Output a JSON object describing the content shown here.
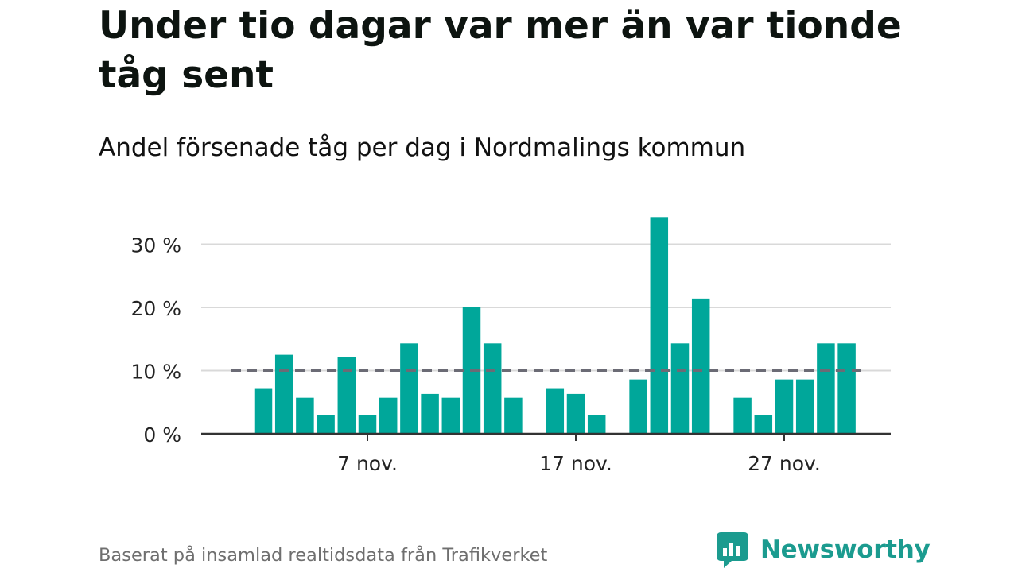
{
  "title": "Under tio dagar var mer än var tionde tåg sent",
  "subtitle": "Andel försenade tåg per dag i Nordmalings kommun",
  "source": "Baserat på insamlad realtidsdata från Trafikverket",
  "brand": "Newsworthy",
  "colors": {
    "bar": "#00a79a",
    "reference_line": "#6b6b75",
    "grid": "#d9d9d9",
    "axis": "#333333",
    "brand": "#1b9b8f"
  },
  "chart_data": {
    "type": "bar",
    "x_unit": "day of November",
    "x": [
      2,
      3,
      4,
      5,
      6,
      7,
      8,
      9,
      10,
      11,
      12,
      13,
      14,
      15,
      16,
      17,
      18,
      19,
      20,
      21,
      22,
      23,
      24,
      25,
      26,
      27,
      28,
      29,
      30
    ],
    "values": [
      7.1,
      12.5,
      5.7,
      2.9,
      12.2,
      2.9,
      5.7,
      14.3,
      6.3,
      5.7,
      20.0,
      14.3,
      5.7,
      0,
      7.1,
      6.3,
      2.9,
      0,
      8.6,
      34.3,
      14.3,
      21.4,
      0,
      5.7,
      2.9,
      8.6,
      8.6,
      14.3,
      14.3
    ],
    "ylim": [
      0,
      35
    ],
    "yticks": [
      0,
      10,
      20,
      30
    ],
    "ytick_labels": [
      "0 %",
      "10 %",
      "20 %",
      "30 %"
    ],
    "xticks": [
      7,
      17,
      27
    ],
    "xtick_labels": [
      "7 nov.",
      "17 nov.",
      "27 nov."
    ],
    "reference_line": {
      "value": 10,
      "style": "dashed"
    },
    "grid": true
  }
}
